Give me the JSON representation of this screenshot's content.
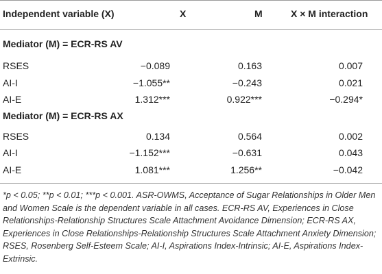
{
  "header": {
    "col0": "Independent variable (X)",
    "col1": "X",
    "col2": "M",
    "col3": "X × M interaction"
  },
  "groups": [
    {
      "title": "Mediator (M) = ECR-RS AV",
      "rows": [
        {
          "label": "RSES",
          "x": "−0.089",
          "m": "0.163",
          "xm": "0.007"
        },
        {
          "label": "AI-I",
          "x": "−1.055**",
          "m": "−0.243",
          "xm": "0.021"
        },
        {
          "label": "AI-E",
          "x": "1.312***",
          "m": "0.922***",
          "xm": "−0.294*"
        }
      ]
    },
    {
      "title": "Mediator (M) = ECR-RS AX",
      "rows": [
        {
          "label": "RSES",
          "x": "0.134",
          "m": "0.564",
          "xm": "0.002"
        },
        {
          "label": "AI-I",
          "x": "−1.152***",
          "m": "−0.631",
          "xm": "0.043"
        },
        {
          "label": "AI-E",
          "x": "1.081***",
          "m": "1.256**",
          "xm": "−0.042"
        }
      ]
    }
  ],
  "footnote": "*p < 0.05; **p < 0.01; ***p < 0.001. ASR-OWMS, Acceptance of Sugar Relationships in Older Men and Women Scale is the dependent variable in all cases. ECR-RS AV, Experiences in Close Relationships-Relationship Structures Scale Attachment Avoidance Dimension; ECR-RS AX, Experiences in Close Relationships-Relationship Structures Scale Attachment Anxiety Dimension; RSES, Rosenberg Self-Esteem Scale; AI-I, Aspirations Index-Intrinsic; AI-E, Aspirations Index-Extrinsic."
}
